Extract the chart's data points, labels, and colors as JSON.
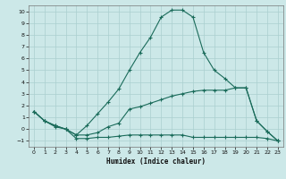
{
  "xlabel": "Humidex (Indice chaleur)",
  "background_color": "#cce8e8",
  "grid_color": "#aacfcf",
  "line_color": "#1a6b5a",
  "xlim": [
    -0.5,
    23.5
  ],
  "ylim": [
    -1.5,
    10.5
  ],
  "yticks": [
    -1,
    0,
    1,
    2,
    3,
    4,
    5,
    6,
    7,
    8,
    9,
    10
  ],
  "xticks": [
    0,
    1,
    2,
    3,
    4,
    5,
    6,
    7,
    8,
    9,
    10,
    11,
    12,
    13,
    14,
    15,
    16,
    17,
    18,
    19,
    20,
    21,
    22,
    23
  ],
  "curve_peak_x": [
    0,
    1,
    2,
    3,
    4,
    5,
    6,
    7,
    8,
    9,
    10,
    11,
    12,
    13,
    14,
    15,
    16,
    17,
    18,
    19,
    20,
    21,
    22,
    23
  ],
  "curve_peak_y": [
    1.5,
    0.7,
    0.3,
    0.0,
    -0.5,
    0.3,
    1.3,
    2.3,
    3.4,
    5.0,
    6.5,
    7.8,
    9.5,
    10.1,
    10.1,
    9.5,
    6.5,
    5.0,
    4.3,
    3.5,
    3.5,
    0.7,
    -0.2,
    -1.0
  ],
  "curve_mid_x": [
    0,
    1,
    2,
    3,
    4,
    5,
    6,
    7,
    8,
    9,
    10,
    11,
    12,
    13,
    14,
    15,
    16,
    17,
    18,
    19,
    20,
    21,
    22,
    23
  ],
  "curve_mid_y": [
    1.5,
    0.7,
    0.3,
    0.0,
    -0.5,
    -0.5,
    -0.3,
    0.2,
    0.5,
    1.7,
    1.9,
    2.2,
    2.5,
    2.8,
    3.0,
    3.2,
    3.3,
    3.3,
    3.3,
    3.5,
    3.5,
    0.7,
    -0.2,
    -1.0
  ],
  "curve_flat_x": [
    0,
    1,
    2,
    3,
    4,
    5,
    6,
    7,
    8,
    9,
    10,
    11,
    12,
    13,
    14,
    15,
    16,
    17,
    18,
    19,
    20,
    21,
    22,
    23
  ],
  "curve_flat_y": [
    1.5,
    0.7,
    0.2,
    0.0,
    -0.8,
    -0.8,
    -0.7,
    -0.7,
    -0.6,
    -0.5,
    -0.5,
    -0.5,
    -0.5,
    -0.5,
    -0.5,
    -0.7,
    -0.7,
    -0.7,
    -0.7,
    -0.7,
    -0.7,
    -0.7,
    -0.8,
    -1.0
  ]
}
